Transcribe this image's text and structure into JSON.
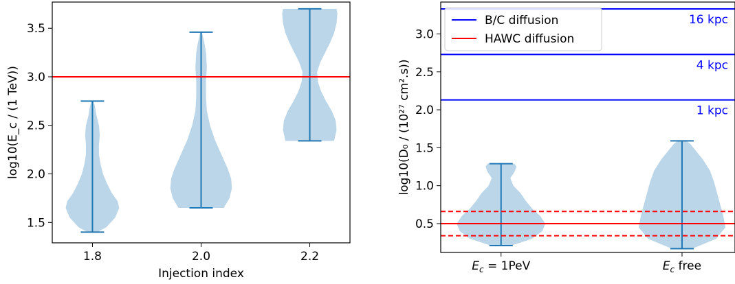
{
  "chart_data": [
    {
      "type": "violin",
      "xlabel": "Injection index",
      "ylabel": "log10(E_c / (1 TeV))",
      "categories": [
        "1.8",
        "2.0",
        "2.2"
      ],
      "ylim": [
        1.29,
        3.77
      ],
      "yticks": [
        "1.5",
        "2.0",
        "2.5",
        "3.0",
        "3.5"
      ],
      "grid": false,
      "violin_color": "#1f77b4",
      "hlines": [
        {
          "y": 3.0,
          "color": "#ff0000",
          "style": "solid"
        }
      ],
      "violins": [
        {
          "category": "1.8",
          "min": 1.4,
          "max": 2.75,
          "profile": [
            [
              1.4,
              0.06
            ],
            [
              1.45,
              0.17
            ],
            [
              1.55,
              0.28
            ],
            [
              1.65,
              0.33
            ],
            [
              1.72,
              0.31
            ],
            [
              1.8,
              0.24
            ],
            [
              1.9,
              0.18
            ],
            [
              2.0,
              0.13
            ],
            [
              2.1,
              0.1
            ],
            [
              2.2,
              0.08
            ],
            [
              2.3,
              0.08
            ],
            [
              2.4,
              0.09
            ],
            [
              2.5,
              0.08
            ],
            [
              2.6,
              0.05
            ],
            [
              2.7,
              0.03
            ],
            [
              2.75,
              0.01
            ]
          ]
        },
        {
          "category": "2.0",
          "min": 1.65,
          "max": 3.46,
          "profile": [
            [
              1.65,
              0.28
            ],
            [
              1.75,
              0.35
            ],
            [
              1.85,
              0.38
            ],
            [
              1.95,
              0.37
            ],
            [
              2.05,
              0.33
            ],
            [
              2.2,
              0.25
            ],
            [
              2.35,
              0.17
            ],
            [
              2.5,
              0.11
            ],
            [
              2.65,
              0.07
            ],
            [
              2.8,
              0.06
            ],
            [
              2.95,
              0.06
            ],
            [
              3.1,
              0.07
            ],
            [
              3.25,
              0.06
            ],
            [
              3.35,
              0.04
            ],
            [
              3.46,
              0.01
            ]
          ]
        },
        {
          "category": "2.2",
          "min": 2.34,
          "max": 3.7,
          "profile": [
            [
              2.34,
              0.3
            ],
            [
              2.45,
              0.33
            ],
            [
              2.55,
              0.32
            ],
            [
              2.65,
              0.27
            ],
            [
              2.75,
              0.2
            ],
            [
              2.85,
              0.14
            ],
            [
              2.95,
              0.1
            ],
            [
              3.05,
              0.09
            ],
            [
              3.15,
              0.13
            ],
            [
              3.25,
              0.19
            ],
            [
              3.35,
              0.25
            ],
            [
              3.45,
              0.3
            ],
            [
              3.55,
              0.33
            ],
            [
              3.65,
              0.34
            ],
            [
              3.7,
              0.33
            ]
          ]
        }
      ]
    },
    {
      "type": "violin",
      "xlabel": "",
      "ylabel": "log10(D₀ / (10²⁷ cm².s))",
      "categories": [
        "E_c = 1PeV",
        "E_c free"
      ],
      "ylim": [
        0.12,
        3.42
      ],
      "yticks": [
        "0.5",
        "1.0",
        "1.5",
        "2.0",
        "2.5",
        "3.0"
      ],
      "grid": false,
      "violin_color": "#1f77b4",
      "legend": {
        "position": "top-left",
        "entries": [
          {
            "label": "B/C diffusion",
            "color": "#0000ff"
          },
          {
            "label": "HAWC diffusion",
            "color": "#ff0000"
          }
        ]
      },
      "hlines": [
        {
          "y": 3.33,
          "color": "#0000ff",
          "style": "solid",
          "label": "16 kpc"
        },
        {
          "y": 2.73,
          "color": "#0000ff",
          "style": "solid",
          "label": "4 kpc"
        },
        {
          "y": 2.13,
          "color": "#0000ff",
          "style": "solid",
          "label": "1 kpc"
        },
        {
          "y": 0.5,
          "color": "#ff0000",
          "style": "solid"
        },
        {
          "y": 0.66,
          "color": "#ff0000",
          "style": "dashed"
        },
        {
          "y": 0.34,
          "color": "#ff0000",
          "style": "dashed"
        }
      ],
      "violins": [
        {
          "category": "E_c = 1PeV",
          "min": 0.21,
          "max": 1.29,
          "profile": [
            [
              0.21,
              0.1
            ],
            [
              0.3,
              0.3
            ],
            [
              0.4,
              0.4
            ],
            [
              0.5,
              0.43
            ],
            [
              0.6,
              0.38
            ],
            [
              0.7,
              0.3
            ],
            [
              0.8,
              0.24
            ],
            [
              0.9,
              0.19
            ],
            [
              1.0,
              0.12
            ],
            [
              1.1,
              0.09
            ],
            [
              1.18,
              0.13
            ],
            [
              1.25,
              0.15
            ],
            [
              1.29,
              0.13
            ]
          ]
        },
        {
          "category": "E_c free",
          "min": 0.17,
          "max": 1.59,
          "profile": [
            [
              0.17,
              0.1
            ],
            [
              0.3,
              0.33
            ],
            [
              0.45,
              0.42
            ],
            [
              0.6,
              0.4
            ],
            [
              0.75,
              0.37
            ],
            [
              0.9,
              0.34
            ],
            [
              1.05,
              0.31
            ],
            [
              1.2,
              0.27
            ],
            [
              1.35,
              0.2
            ],
            [
              1.45,
              0.14
            ],
            [
              1.55,
              0.08
            ],
            [
              1.59,
              0.04
            ]
          ]
        }
      ]
    }
  ]
}
